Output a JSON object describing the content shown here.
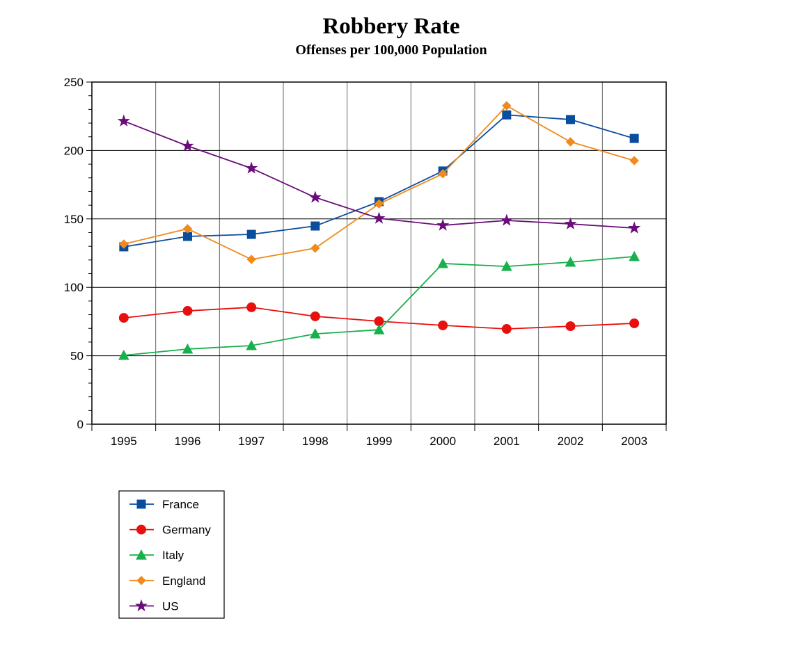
{
  "chart_data": {
    "type": "line",
    "title": "Robbery Rate",
    "subtitle": "Offenses per 100,000 Population",
    "xlabel": "",
    "ylabel": "",
    "categories": [
      "1995",
      "1996",
      "1997",
      "1998",
      "1999",
      "2000",
      "2001",
      "2002",
      "2003"
    ],
    "ylim": [
      0,
      250
    ],
    "yticks": [
      0,
      50,
      100,
      150,
      200,
      250
    ],
    "grid": true,
    "legend_position": "bottom-left",
    "series": [
      {
        "name": "France",
        "color": "#0a4d9c",
        "marker": "square",
        "values": [
          129.6,
          137.2,
          138.7,
          144.8,
          162.6,
          185,
          226,
          222.6,
          208.8
        ]
      },
      {
        "name": "Germany",
        "color": "#e8100f",
        "marker": "circle",
        "values": [
          77.7,
          82.8,
          85.4,
          78.8,
          75.2,
          72.2,
          69.6,
          71.6,
          73.7
        ]
      },
      {
        "name": "Italy",
        "color": "#18b04c",
        "marker": "triangle",
        "values": [
          50.3,
          54.9,
          57.4,
          66,
          69,
          117.4,
          115.3,
          118.4,
          122.5
        ]
      },
      {
        "name": "England",
        "color": "#f08a1d",
        "marker": "diamond",
        "values": [
          131.6,
          142.8,
          120.4,
          128.6,
          161,
          183,
          232.7,
          206.3,
          192.6
        ]
      },
      {
        "name": "US",
        "color": "#6a0c7a",
        "marker": "star",
        "values": [
          221.5,
          203.3,
          187,
          165.7,
          150.4,
          145.3,
          148.9,
          146.3,
          143.3
        ]
      }
    ]
  }
}
